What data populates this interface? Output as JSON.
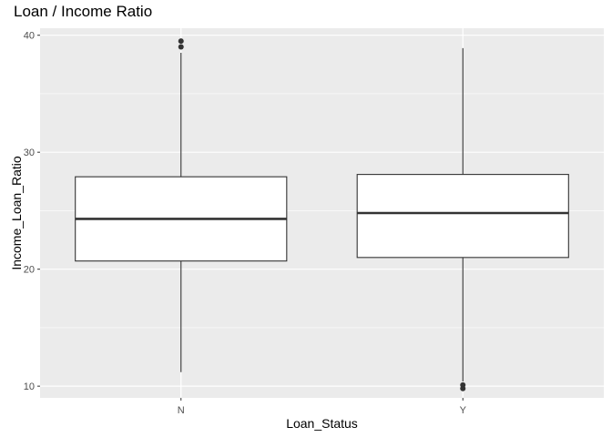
{
  "chart_data": {
    "type": "box",
    "title": "Loan / Income Ratio",
    "xlabel": "Loan_Status",
    "ylabel": "Income_Loan_Ratio",
    "categories": [
      "N",
      "Y"
    ],
    "ylim": [
      9.0,
      40.6
    ],
    "yticks": [
      10,
      20,
      30,
      40
    ],
    "grid": true,
    "boxes": [
      {
        "category": "N",
        "whisker_low": 11.2,
        "q1": 20.7,
        "median": 24.3,
        "q3": 27.9,
        "whisker_high": 38.5,
        "outliers": [
          39.0,
          39.5
        ]
      },
      {
        "category": "Y",
        "whisker_low": 10.4,
        "q1": 21.0,
        "median": 24.8,
        "q3": 28.1,
        "whisker_high": 38.9,
        "outliers": [
          9.8,
          10.1
        ]
      }
    ],
    "colors": {
      "panel_bg": "#ebebeb",
      "grid": "#ffffff",
      "box_fill": "#ffffff",
      "box_line": "#333333",
      "outlier": "#333333"
    }
  }
}
